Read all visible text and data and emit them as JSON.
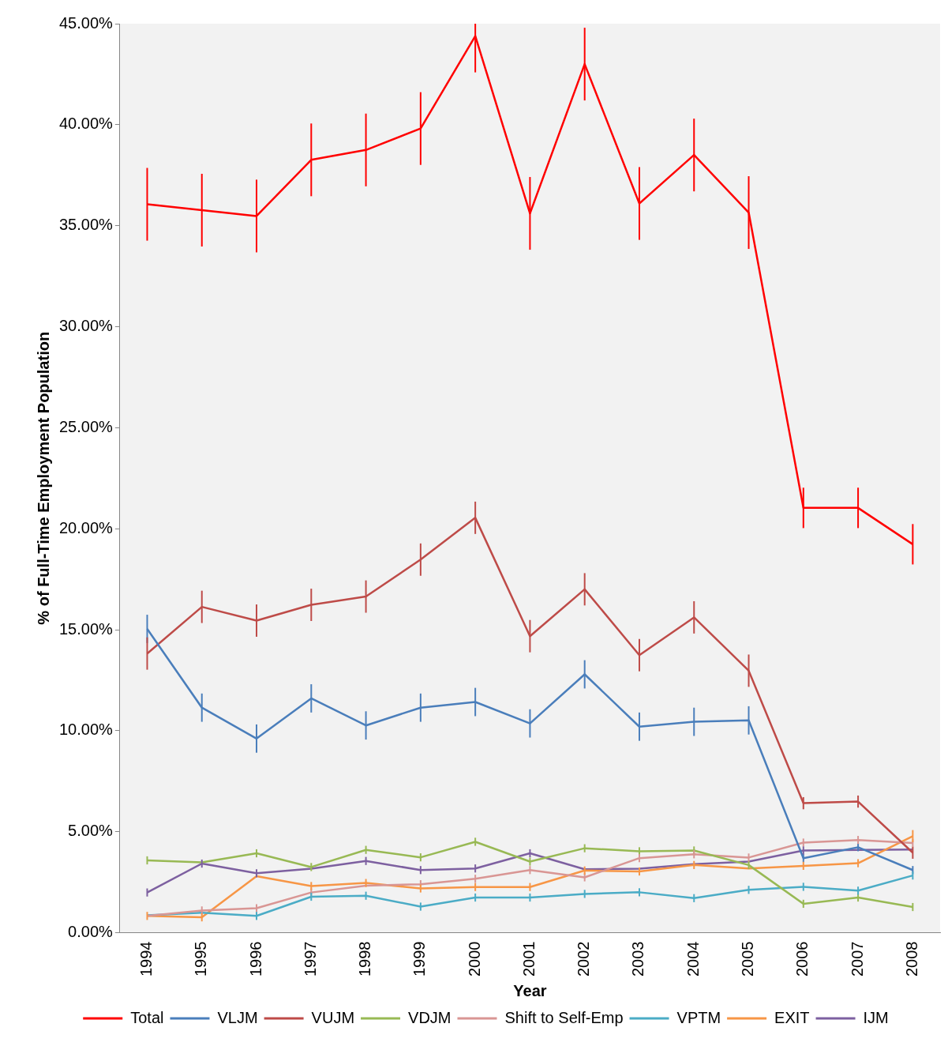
{
  "chart_data": {
    "type": "line",
    "xlabel": "Year",
    "ylabel": "% of Full-Time Employment Population",
    "categories": [
      "1994",
      "1995",
      "1996",
      "1997",
      "1998",
      "1999",
      "2000",
      "2001",
      "2002",
      "2003",
      "2004",
      "2005",
      "2006",
      "2007",
      "2008"
    ],
    "ylim": [
      0,
      45
    ],
    "yticks": [
      {
        "value": 0,
        "label": "0.00%"
      },
      {
        "value": 5,
        "label": "5.00%"
      },
      {
        "value": 10,
        "label": "10.00%"
      },
      {
        "value": 15,
        "label": "15.00%"
      },
      {
        "value": 20,
        "label": "20.00%"
      },
      {
        "value": 25,
        "label": "25.00%"
      },
      {
        "value": 30,
        "label": "30.00%"
      },
      {
        "value": 35,
        "label": "35.00%"
      },
      {
        "value": 40,
        "label": "40.00%"
      },
      {
        "value": 45,
        "label": "45.00%"
      }
    ],
    "grid": false,
    "legend": "bottom",
    "marker": "none",
    "line_style": "solid",
    "series": [
      {
        "name": "Total",
        "color": "#ff0000",
        "values": [
          36.06,
          35.77,
          35.48,
          38.26,
          38.75,
          39.81,
          44.39,
          35.61,
          43.0,
          36.1,
          38.5,
          35.65,
          21.03,
          21.03,
          19.23
        ],
        "errors": [
          1.8,
          1.8,
          1.8,
          1.8,
          1.8,
          1.8,
          [
            42.59,
            45
          ],
          1.8,
          1.8,
          1.8,
          1.8,
          1.8,
          1.0,
          1.0,
          1.0
        ]
      },
      {
        "name": "VLJM",
        "color": "#4a7ebb",
        "values": [
          15.04,
          11.14,
          9.61,
          11.6,
          10.26,
          11.14,
          11.42,
          10.36,
          12.79,
          10.2,
          10.44,
          10.51,
          3.69,
          4.23,
          3.1
        ],
        "errors": [
          0.7,
          0.7,
          0.7,
          0.7,
          0.7,
          0.7,
          0.7,
          0.7,
          0.7,
          0.7,
          0.7,
          0.7,
          0.2,
          0.2,
          0.2
        ]
      },
      {
        "name": "VUJM",
        "color": "#be4b48",
        "values": [
          13.82,
          16.13,
          15.45,
          16.23,
          16.64,
          18.47,
          20.54,
          14.68,
          17.0,
          13.74,
          15.61,
          12.97,
          6.41,
          6.49,
          3.96
        ],
        "errors": [
          0.8,
          0.8,
          0.8,
          0.8,
          0.8,
          0.8,
          0.8,
          0.8,
          0.8,
          0.8,
          0.8,
          0.8,
          0.3,
          0.3,
          0.3
        ]
      },
      {
        "name": "VDJM",
        "color": "#98b954",
        "values": [
          3.58,
          3.48,
          3.93,
          3.25,
          4.1,
          3.73,
          4.5,
          3.52,
          4.18,
          4.03,
          4.07,
          3.35,
          1.43,
          1.74,
          1.27
        ],
        "errors": [
          0.2,
          null,
          0.2,
          0.2,
          0.2,
          0.2,
          0.2,
          0.2,
          0.2,
          0.2,
          0.2,
          0.2,
          0.2,
          0.2,
          0.2
        ]
      },
      {
        "name": "Shift to Self-Emp",
        "color": "#d99694",
        "values": [
          0.83,
          1.1,
          1.21,
          1.99,
          2.33,
          2.4,
          2.67,
          3.1,
          2.74,
          3.69,
          3.88,
          3.72,
          4.46,
          4.59,
          4.44
        ],
        "errors": [
          null,
          0.2,
          0.2,
          0.2,
          null,
          0.2,
          0.2,
          0.2,
          0.2,
          0.2,
          0.2,
          0.2,
          0.2,
          0.2,
          0.2
        ]
      },
      {
        "name": "VPTM",
        "color": "#4bacc6",
        "values": [
          0.86,
          0.99,
          0.83,
          1.78,
          1.83,
          1.29,
          1.74,
          1.74,
          1.92,
          2.0,
          1.71,
          2.12,
          2.27,
          2.08,
          2.83
        ],
        "errors": [
          null,
          null,
          0.2,
          0.2,
          0.2,
          0.2,
          0.2,
          0.2,
          0.2,
          0.2,
          0.2,
          0.2,
          0.2,
          0.2,
          0.2
        ]
      },
      {
        "name": "EXIT",
        "color": "#f79646",
        "values": [
          0.83,
          0.76,
          2.8,
          2.31,
          2.46,
          2.19,
          2.26,
          2.26,
          3.08,
          3.03,
          3.35,
          3.18,
          3.31,
          3.44,
          4.78
        ],
        "errors": [
          0.2,
          0.2,
          null,
          0.2,
          0.2,
          0.2,
          0.2,
          0.2,
          0.2,
          0.2,
          0.2,
          null,
          0.2,
          0.2,
          0.3
        ]
      },
      {
        "name": "IJM",
        "color": "#7d60a0",
        "values": [
          1.99,
          3.42,
          2.94,
          3.17,
          3.55,
          3.1,
          3.18,
          3.93,
          3.14,
          3.17,
          3.39,
          3.52,
          4.07,
          4.1,
          4.12
        ],
        "errors": [
          0.2,
          0.2,
          0.2,
          null,
          0.2,
          0.2,
          0.2,
          0.2,
          null,
          null,
          null,
          null,
          0.2,
          null,
          null
        ]
      }
    ]
  }
}
